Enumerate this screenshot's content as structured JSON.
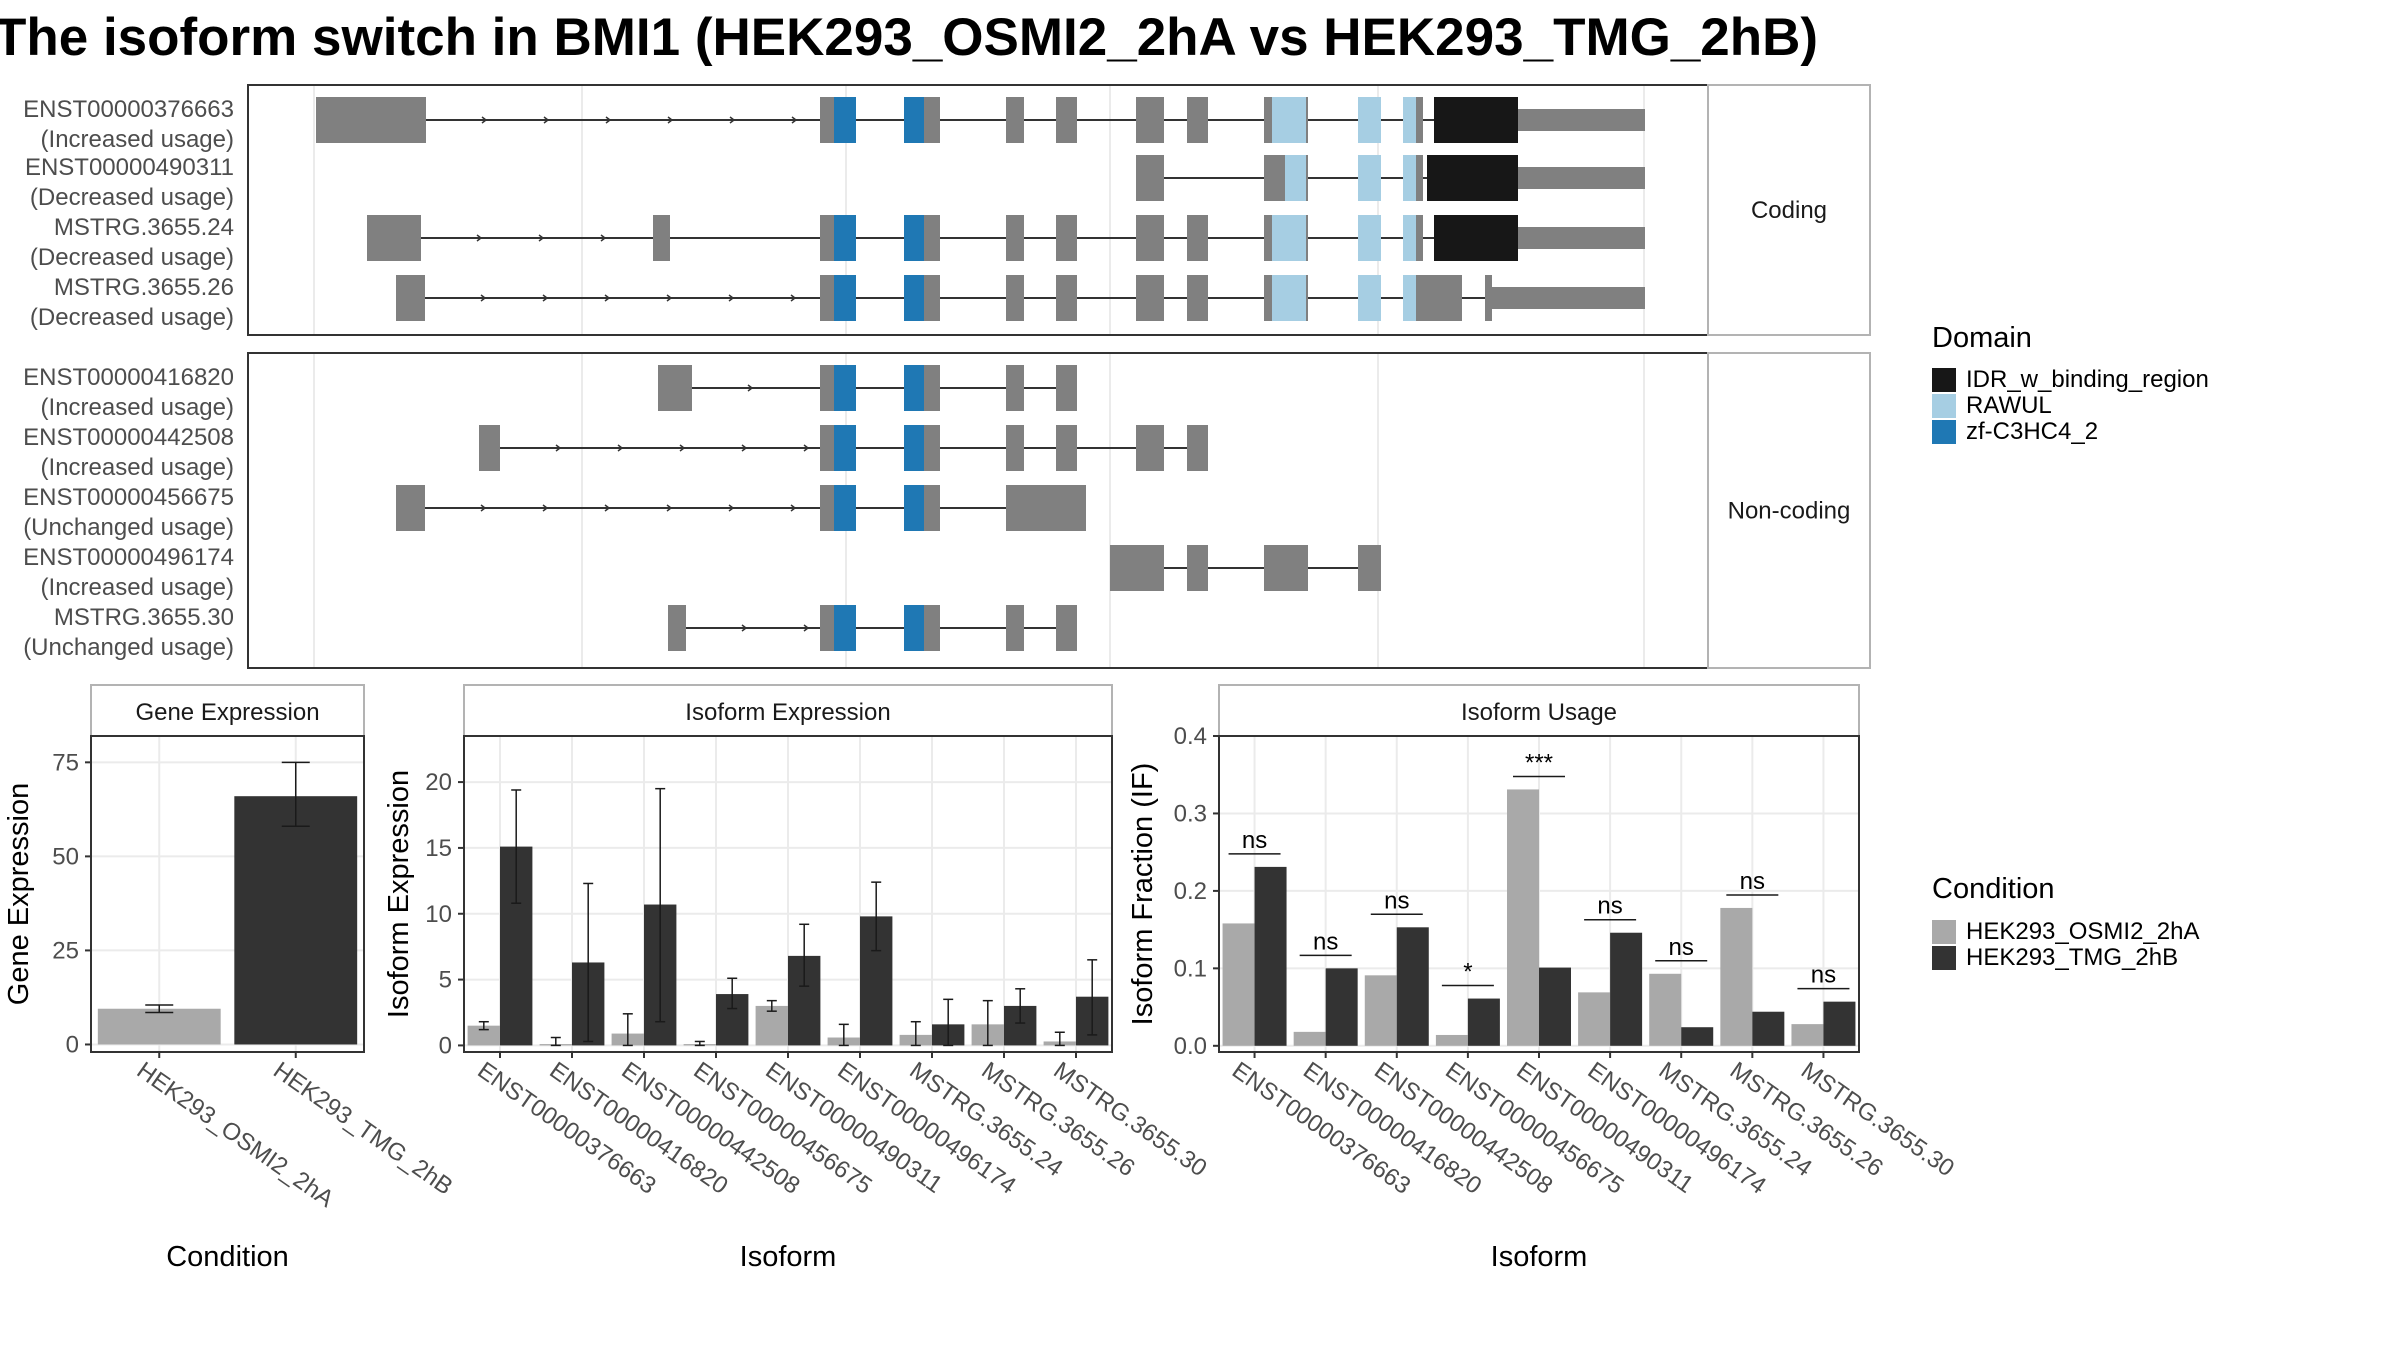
{
  "title": "The isoform switch in BMI1 (HEK293_OSMI2_2hA vs HEK293_TMG_2hB)",
  "colors": {
    "exon": "#808080",
    "idr": "#171717",
    "rawul": "#a6cee3",
    "zf": "#1f78b4",
    "cond1": "#a9a9a9",
    "cond2": "#333333",
    "grid": "#ebebeb",
    "panel_border": "#333333"
  },
  "structure": {
    "groups": [
      {
        "label": "Coding",
        "rows": [
          {
            "id": "ENST00000376663",
            "usage": "(Increased usage)"
          },
          {
            "id": "ENST00000490311",
            "usage": "(Decreased usage)"
          },
          {
            "id": "MSTRG.3655.24",
            "usage": "(Decreased usage)"
          },
          {
            "id": "MSTRG.3655.26",
            "usage": "(Decreased usage)"
          }
        ]
      },
      {
        "label": "Non-coding",
        "rows": [
          {
            "id": "ENST00000416820",
            "usage": "(Increased usage)"
          },
          {
            "id": "ENST00000442508",
            "usage": "(Increased usage)"
          },
          {
            "id": "ENST00000456675",
            "usage": "(Unchanged usage)"
          },
          {
            "id": "ENST00000496174",
            "usage": "(Increased usage)"
          },
          {
            "id": "MSTRG.3655.30",
            "usage": "(Unchanged usage)"
          }
        ]
      }
    ]
  },
  "legends": {
    "domain": {
      "title": "Domain",
      "items": [
        {
          "label": "IDR_w_binding_region",
          "color_key": "idr"
        },
        {
          "label": "RAWUL",
          "color_key": "rawul"
        },
        {
          "label": "zf-C3HC4_2",
          "color_key": "zf"
        }
      ]
    },
    "condition": {
      "title": "Condition",
      "items": [
        {
          "label": "HEK293_OSMI2_2hA",
          "color_key": "cond1"
        },
        {
          "label": "HEK293_TMG_2hB",
          "color_key": "cond2"
        }
      ]
    }
  },
  "chart_data": [
    {
      "type": "bar",
      "title": "Gene Expression",
      "xlabel": "Condition",
      "ylabel": "Gene Expression",
      "categories": [
        "HEK293_OSMI2_2hA",
        "HEK293_TMG_2hB"
      ],
      "values": [
        9.5,
        66
      ],
      "error": [
        [
          8.5,
          10.5
        ],
        [
          58,
          75
        ]
      ],
      "ylim": [
        -2,
        82
      ],
      "yticks": [
        0,
        25,
        50,
        75
      ]
    },
    {
      "type": "bar",
      "title": "Isoform Expression",
      "xlabel": "Isoform",
      "ylabel": "Isoform Expression",
      "categories": [
        "ENST00000376663",
        "ENST00000416820",
        "ENST00000442508",
        "ENST00000456675",
        "ENST00000490311",
        "ENST00000496174",
        "MSTRG.3655.24",
        "MSTRG.3655.26",
        "MSTRG.3655.30"
      ],
      "series": [
        {
          "name": "HEK293_OSMI2_2hA",
          "values": [
            1.5,
            0.1,
            0.9,
            0.1,
            3.0,
            0.6,
            0.8,
            1.6,
            0.3
          ],
          "error_low": [
            1.2,
            0.0,
            0.0,
            0.0,
            2.6,
            0.0,
            0.0,
            0.0,
            0.0
          ],
          "error_high": [
            1.8,
            0.6,
            2.4,
            0.3,
            3.4,
            1.6,
            1.8,
            3.4,
            1.0
          ]
        },
        {
          "name": "HEK293_TMG_2hB",
          "values": [
            15.1,
            6.3,
            10.7,
            3.9,
            6.8,
            9.8,
            1.6,
            3.0,
            3.7
          ],
          "error_low": [
            10.8,
            0.3,
            1.8,
            2.8,
            4.5,
            7.2,
            0.0,
            1.7,
            0.8
          ],
          "error_high": [
            19.4,
            12.3,
            19.5,
            5.1,
            9.2,
            12.4,
            3.5,
            4.3,
            6.5
          ]
        }
      ],
      "ylim": [
        -0.5,
        23.5
      ],
      "yticks": [
        0,
        5,
        10,
        15,
        20
      ]
    },
    {
      "type": "bar",
      "title": "Isoform Usage",
      "xlabel": "Isoform",
      "ylabel": "Isoform Fraction (IF)",
      "categories": [
        "ENST00000376663",
        "ENST00000416820",
        "ENST00000442508",
        "ENST00000456675",
        "ENST00000490311",
        "ENST00000496174",
        "MSTRG.3655.24",
        "MSTRG.3655.26",
        "MSTRG.3655.30"
      ],
      "series": [
        {
          "name": "HEK293_OSMI2_2hA",
          "values": [
            0.158,
            0.018,
            0.091,
            0.014,
            0.331,
            0.069,
            0.093,
            0.178,
            0.028
          ]
        },
        {
          "name": "HEK293_TMG_2hB",
          "values": [
            0.231,
            0.1,
            0.153,
            0.061,
            0.101,
            0.146,
            0.024,
            0.044,
            0.057
          ]
        }
      ],
      "significance": [
        "ns",
        "ns",
        "ns",
        "*",
        "***",
        "ns",
        "ns",
        "ns",
        "ns"
      ],
      "ylim": [
        -0.008,
        0.4
      ],
      "yticks": [
        0.0,
        0.1,
        0.2,
        0.3,
        0.4
      ],
      "ytick_labels": [
        "0.0",
        "0.1",
        "0.2",
        "0.3",
        "0.4"
      ]
    }
  ]
}
